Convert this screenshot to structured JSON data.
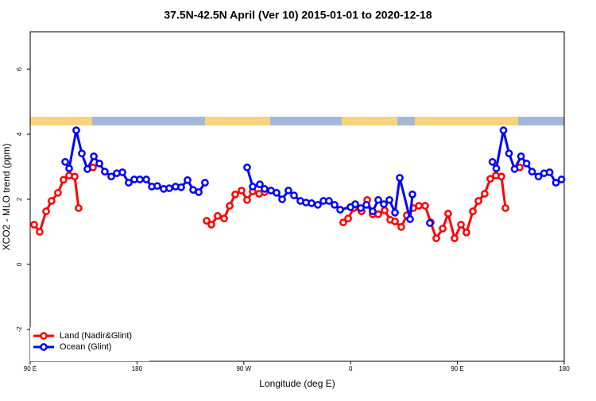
{
  "chart_data": {
    "type": "line",
    "title": "37.5N-42.5N April (Ver 10)   2015-01-01 to 2020-12-18",
    "xlabel": "Longitude (deg E)",
    "ylabel": "XCO2 - MLO trend (ppm)",
    "xlim": [
      90,
      540
    ],
    "ylim": [
      -2.98,
      7.15
    ],
    "xticks": [
      {
        "value": 90,
        "label": "90 E"
      },
      180,
      {
        "value": 270,
        "label": "90 W"
      },
      {
        "value": 360,
        "label": "0"
      },
      {
        "value": 450,
        "label": "90 E"
      },
      {
        "value": 540,
        "label": "180"
      }
    ],
    "yticks": [
      -2,
      0,
      2,
      4,
      6
    ],
    "legend": "bottom-left",
    "series": [
      {
        "name": "Land (Nadir&Glint)",
        "color": "#ff0000",
        "x": [
          93.3,
          98,
          103.4,
          108,
          113.4,
          118.1,
          122.8,
          127.5,
          130.8,
          142.9,
          238.7,
          242.7,
          248,
          253.4,
          258.1,
          262.8,
          268.1,
          272.8,
          277.5,
          282.9,
          287.5,
          353.8,
          357.9,
          362.6,
          369.2,
          374,
          378.6,
          383.3,
          388.7,
          393.4,
          397.4,
          402.7,
          407.4,
          412.8,
          417.5,
          422.8,
          427.5,
          432.2,
          437.6,
          442.2,
          447.6,
          453,
          457.6,
          463,
          467.7,
          473,
          477.7,
          482.4,
          487.1,
          490.5,
          502.5
        ],
        "values": [
          1.22,
          1.0,
          1.63,
          1.95,
          2.2,
          2.6,
          2.73,
          2.7,
          1.73,
          2.98,
          1.34,
          1.22,
          1.49,
          1.41,
          1.8,
          2.15,
          2.27,
          1.98,
          2.24,
          2.17,
          2.22,
          1.29,
          1.41,
          1.73,
          1.63,
          1.98,
          1.54,
          1.54,
          1.66,
          1.37,
          1.32,
          1.15,
          1.51,
          1.73,
          1.8,
          1.8,
          1.29,
          0.8,
          1.1,
          1.56,
          0.8,
          1.22,
          0.98,
          1.63,
          1.95,
          2.17,
          2.63,
          2.73,
          2.7,
          1.73,
          2.98
        ]
      },
      {
        "name": "Ocean (Glint)",
        "color": "#0000ff",
        "x": [
          119.5,
          122.8,
          128.8,
          133.5,
          138.2,
          143.6,
          148.3,
          152.9,
          158.3,
          163,
          167.7,
          173,
          177.7,
          182.4,
          187.8,
          192.5,
          197.1,
          202.5,
          207.2,
          212.5,
          217.2,
          222.6,
          227.3,
          232,
          237.3,
          272.8,
          277.5,
          283.5,
          287.5,
          292.9,
          297.6,
          302.3,
          307.6,
          312.3,
          317.7,
          322.4,
          327.1,
          332.4,
          337.1,
          341.8,
          346.5,
          351.2,
          359.9,
          363.9,
          368.6,
          373.3,
          378.6,
          383.3,
          388,
          392.7,
          397.4,
          401.4,
          410.1,
          412.1,
          426.8,
          479.5,
          482.8,
          488.8,
          493.5,
          498.2,
          503.6,
          508.3,
          512.9,
          518.3,
          523,
          527.7,
          533,
          537.7
        ],
        "values": [
          3.15,
          2.95,
          4.12,
          3.41,
          2.93,
          3.32,
          3.1,
          2.85,
          2.7,
          2.8,
          2.83,
          2.51,
          2.61,
          2.61,
          2.61,
          2.39,
          2.41,
          2.32,
          2.34,
          2.39,
          2.37,
          2.59,
          2.29,
          2.22,
          2.51,
          2.98,
          2.39,
          2.46,
          2.32,
          2.27,
          2.2,
          2.0,
          2.27,
          2.12,
          1.95,
          1.9,
          1.88,
          1.83,
          1.95,
          1.95,
          1.83,
          1.68,
          1.76,
          1.85,
          1.73,
          1.83,
          1.63,
          1.98,
          1.85,
          1.98,
          1.59,
          2.66,
          1.39,
          2.15,
          1.27,
          3.15,
          2.95,
          4.12,
          3.41,
          2.93,
          3.32,
          3.1,
          2.85,
          2.7,
          2.8,
          2.83,
          2.51,
          2.61
        ]
      }
    ]
  }
}
